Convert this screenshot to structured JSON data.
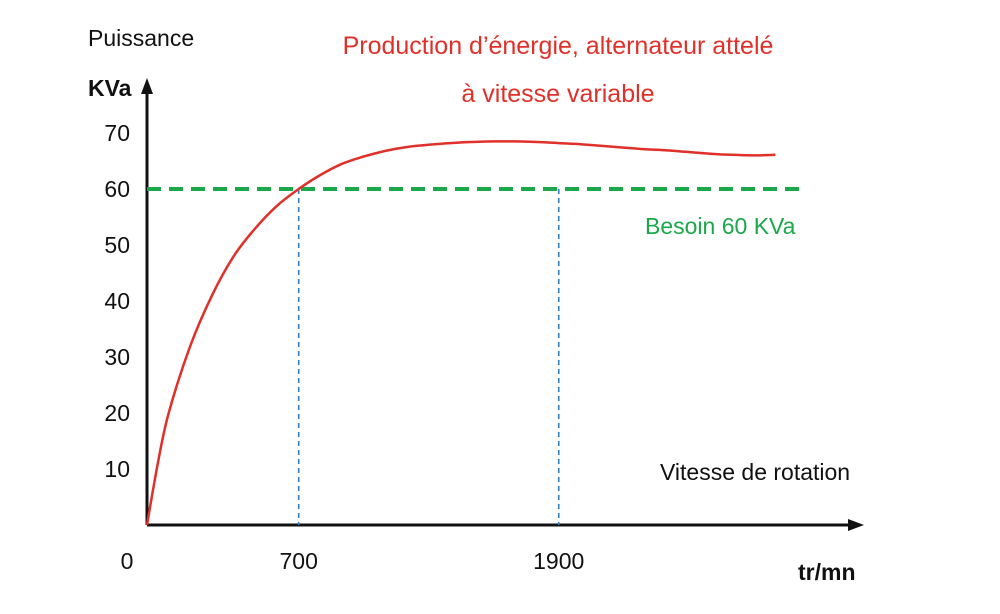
{
  "chart_data": {
    "type": "line",
    "title": "Production d’énergie, alternateur attelé",
    "subtitle": "à vitesse variable",
    "ylabel": "Puissance",
    "yunit": "KVa",
    "xlabel": "Vitesse de rotation",
    "xunit": "tr/mn",
    "origin_label": "0",
    "ylim": [
      0,
      70
    ],
    "yticks": [
      "70",
      "60",
      "50",
      "40",
      "30",
      "20",
      "10"
    ],
    "ytick_values": [
      70,
      60,
      50,
      40,
      30,
      20,
      10
    ],
    "xticks": [
      "700",
      "1900"
    ],
    "xtick_values": [
      700,
      1900
    ],
    "grid": false,
    "series": [
      {
        "name": "Production d’énergie, alternateur attelé",
        "color": "#e0302a",
        "x": [
          0,
          50,
          100,
          200,
          300,
          400,
          500,
          600,
          700,
          800,
          900,
          1000,
          1100,
          1200,
          1300,
          1400,
          1500,
          1600,
          1700,
          1800,
          1900,
          2000,
          2100,
          2200,
          2300,
          2400,
          2500,
          2600,
          2700,
          2800,
          2900
        ],
        "y": [
          0,
          11,
          20,
          32,
          41,
          48,
          53,
          57,
          60,
          62.5,
          64.5,
          65.8,
          66.8,
          67.5,
          67.9,
          68.2,
          68.4,
          68.5,
          68.5,
          68.4,
          68.2,
          68.0,
          67.7,
          67.4,
          67.1,
          66.9,
          66.6,
          66.3,
          66.1,
          66.0,
          66.1
        ]
      },
      {
        "name": "Besoin 60 KVa",
        "color": "#1aa84a",
        "style": "dashed",
        "y_constant": 60
      }
    ],
    "reference_lines": [
      {
        "x": 700,
        "y": 60,
        "color": "#2f7fc1",
        "style": "dashed"
      },
      {
        "x": 1900,
        "y": 60,
        "color": "#2f7fc1",
        "style": "dashed"
      }
    ],
    "annotations": [
      {
        "text": "Besoin 60 KVa",
        "color": "#1aa84a"
      }
    ]
  },
  "colors": {
    "axis": "#111111",
    "curve": "#e0302a",
    "need": "#1aa84a",
    "guides": "#2f7fc1",
    "title": "#e0302a",
    "text": "#111111"
  }
}
